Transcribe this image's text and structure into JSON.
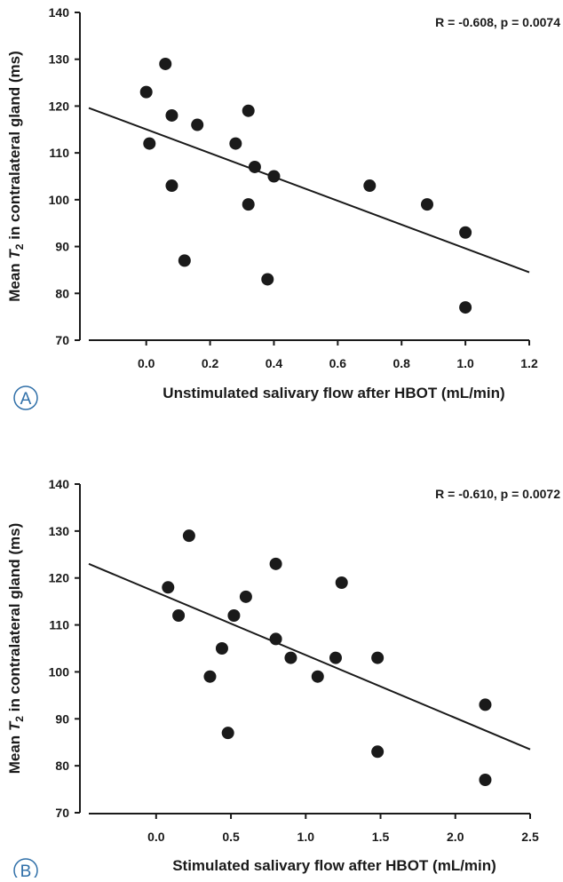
{
  "chart_data": [
    {
      "type": "scatter",
      "panel_label": "A",
      "annotation": "R = -0.608, p = 0.0074",
      "xlabel": "Unstimulated salivary flow after HBOT (mL/min)",
      "ylabel": "Mean T2 in contralateral gland (ms)",
      "ylabel_parts": {
        "pre": "Mean ",
        "var": "T",
        "sub": "2",
        "post": " in contralateral gland (ms)"
      },
      "xlim": [
        -0.18,
        1.2
      ],
      "ylim": [
        70,
        140
      ],
      "xticks": [
        "0.0",
        "0.2",
        "0.4",
        "0.6",
        "0.8",
        "1.0",
        "1.2"
      ],
      "xtick_values": [
        0,
        0.2,
        0.4,
        0.6,
        0.8,
        1.0,
        1.2
      ],
      "yticks": [
        "70",
        "80",
        "90",
        "100",
        "110",
        "120",
        "130",
        "140"
      ],
      "ytick_values": [
        70,
        80,
        90,
        100,
        110,
        120,
        130,
        140
      ],
      "grid": false,
      "points": [
        [
          0,
          123
        ],
        [
          0.06,
          129
        ],
        [
          0.08,
          118
        ],
        [
          0.01,
          112
        ],
        [
          0.16,
          116
        ],
        [
          0.32,
          119
        ],
        [
          0.28,
          112
        ],
        [
          0.34,
          107
        ],
        [
          0.4,
          105
        ],
        [
          0.08,
          103
        ],
        [
          0.32,
          99
        ],
        [
          0.12,
          87
        ],
        [
          0.38,
          83
        ],
        [
          0.7,
          103
        ],
        [
          0.88,
          99
        ],
        [
          1.0,
          93
        ],
        [
          1.0,
          77
        ]
      ],
      "fit_line": [
        [
          -0.18,
          119.6
        ],
        [
          1.2,
          84.5
        ]
      ]
    },
    {
      "type": "scatter",
      "panel_label": "B",
      "annotation": "R = -0.610, p = 0.0072",
      "xlabel": "Stimulated salivary flow after HBOT (mL/min)",
      "ylabel": "Mean T2 in contralateral gland (ms)",
      "ylabel_parts": {
        "pre": "Mean ",
        "var": "T",
        "sub": "2",
        "post": " in contralateral gland (ms)"
      },
      "xlim": [
        -0.45,
        2.5
      ],
      "ylim": [
        70,
        140
      ],
      "xticks": [
        "0.0",
        "0.5",
        "1.0",
        "1.5",
        "2.0",
        "2.5"
      ],
      "xtick_values": [
        0,
        0.5,
        1.0,
        1.5,
        2.0,
        2.5
      ],
      "yticks": [
        "70",
        "80",
        "90",
        "100",
        "110",
        "120",
        "130",
        "140"
      ],
      "ytick_values": [
        70,
        80,
        90,
        100,
        110,
        120,
        130,
        140
      ],
      "grid": false,
      "points": [
        [
          0.22,
          129
        ],
        [
          0.08,
          118
        ],
        [
          0.15,
          112
        ],
        [
          0.6,
          116
        ],
        [
          0.52,
          112
        ],
        [
          0.8,
          123
        ],
        [
          1.24,
          119
        ],
        [
          0.8,
          107
        ],
        [
          0.44,
          105
        ],
        [
          0.9,
          103
        ],
        [
          1.2,
          103
        ],
        [
          1.48,
          103
        ],
        [
          0.36,
          99
        ],
        [
          1.08,
          99
        ],
        [
          0.48,
          87
        ],
        [
          1.48,
          83
        ],
        [
          2.2,
          93
        ],
        [
          2.2,
          77
        ]
      ],
      "fit_line": [
        [
          -0.45,
          123
        ],
        [
          2.5,
          83.5
        ]
      ]
    }
  ],
  "colors": {
    "marks": "#1a1a1a",
    "panel_label": "#2f6fa8"
  }
}
